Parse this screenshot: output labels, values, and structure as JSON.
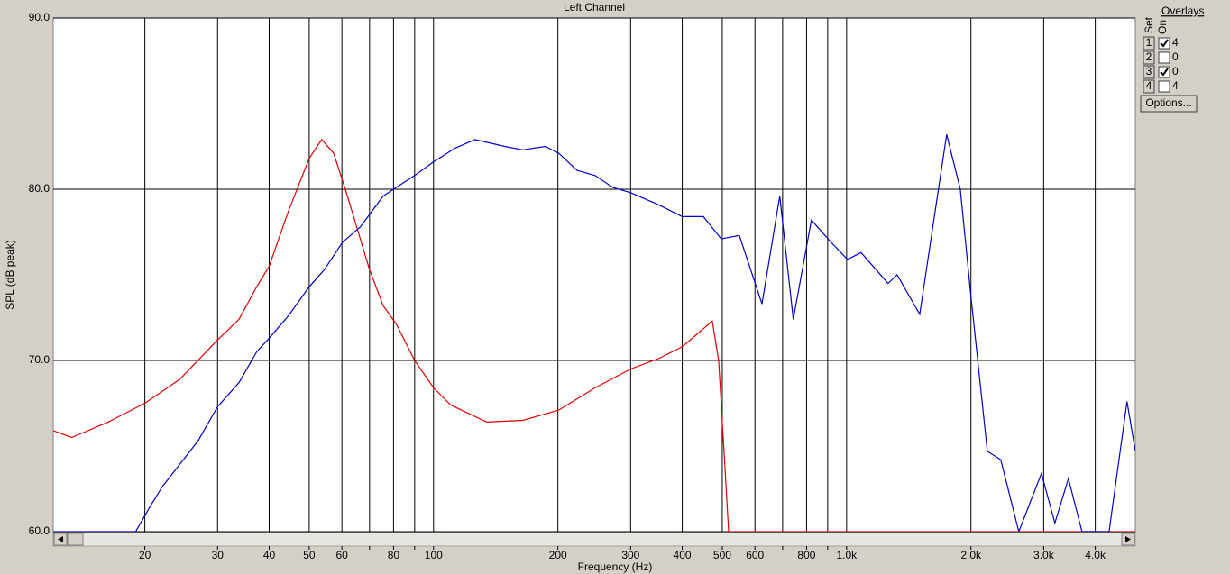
{
  "chart_data": {
    "type": "line",
    "title": "Left Channel",
    "xlabel": "Frequency (Hz)",
    "ylabel": "SPL (dB peak)",
    "xscale": "log",
    "xlim": [
      12,
      5000
    ],
    "ylim": [
      60,
      90
    ],
    "grid": true,
    "xticks": [
      20,
      30,
      40,
      50,
      60,
      80,
      100,
      200,
      300,
      400,
      500,
      600,
      800,
      {
        "value": 1000,
        "label": "1.0k"
      },
      {
        "value": 2000,
        "label": "2.0k"
      },
      {
        "value": 3000,
        "label": "3.0k"
      },
      {
        "value": 4000,
        "label": "4.0k"
      }
    ],
    "xminor": [
      70,
      90,
      700,
      900
    ],
    "yticks": [
      {
        "value": 60,
        "label": "60.0"
      },
      {
        "value": 70,
        "label": "70.0"
      },
      {
        "value": 80,
        "label": "80.0"
      },
      {
        "value": 90,
        "label": "90.0"
      }
    ],
    "series": [
      {
        "color": "#e00000",
        "x": [
          12,
          13.3,
          16.3,
          20,
          24.3,
          30,
          33.8,
          37.3,
          40,
          44.5,
          50,
          53.6,
          57.3,
          61.7,
          70,
          75.5,
          81.4,
          90,
          100,
          110,
          134.5,
          164.5,
          201,
          246,
          300,
          350,
          400,
          473,
          490,
          505,
          518,
          5000
        ],
        "values": [
          65.9,
          65.5,
          66.4,
          67.5,
          68.9,
          71.2,
          72.4,
          74.3,
          75.5,
          78.7,
          81.8,
          82.9,
          82.1,
          79.7,
          75.3,
          73.2,
          72.1,
          70.0,
          68.4,
          67.4,
          66.4,
          66.5,
          67.1,
          68.4,
          69.5,
          70.1,
          70.8,
          72.3,
          70.0,
          64.7,
          60.0,
          60.0
        ]
      },
      {
        "color": "#0000c8",
        "x": [
          12,
          19.0,
          20.4,
          22.0,
          26.9,
          30,
          33.8,
          37.3,
          40,
          44.5,
          50,
          54.4,
          60.2,
          66.5,
          75.5,
          80,
          90,
          100,
          112.8,
          126,
          148.8,
          164.5,
          186.5,
          201,
          222.5,
          246,
          272,
          300,
          350,
          400,
          450,
          497,
          550,
          624,
          689,
          743,
          822,
          909,
          1005,
          1084,
          1260,
          1325,
          1503,
          1747,
          1885,
          2001,
          2191,
          2362,
          2612,
          2963,
          3194,
          3443,
          3715,
          4319,
          4775,
          5000
        ],
        "values": [
          60,
          60,
          61.3,
          62.6,
          65.3,
          67.3,
          68.7,
          70.5,
          71.3,
          72.6,
          74.3,
          75.3,
          76.9,
          77.8,
          79.6,
          80.0,
          80.8,
          81.6,
          82.4,
          82.9,
          82.5,
          82.3,
          82.5,
          82.1,
          81.1,
          80.8,
          80.1,
          79.8,
          79.1,
          78.4,
          78.4,
          77.1,
          77.3,
          73.3,
          79.6,
          72.4,
          78.2,
          77.0,
          75.9,
          76.3,
          74.5,
          75.0,
          72.7,
          83.2,
          80.0,
          73.7,
          64.7,
          64.2,
          60,
          63.4,
          60.5,
          63.1,
          60,
          60,
          67.6,
          64.7
        ]
      }
    ]
  },
  "overlays": {
    "heading": "Overlays",
    "set_label": "Set",
    "on_label": "On",
    "rows": [
      {
        "set": "1",
        "checked": true,
        "count": "4",
        "color": "#ff0000"
      },
      {
        "set": "2",
        "checked": false,
        "count": "0",
        "color": "#ff00ff"
      },
      {
        "set": "3",
        "checked": true,
        "count": "0",
        "color": "#0000ff"
      },
      {
        "set": "4",
        "checked": false,
        "count": "4",
        "color": "#008000"
      }
    ],
    "options_button": "Options..."
  }
}
